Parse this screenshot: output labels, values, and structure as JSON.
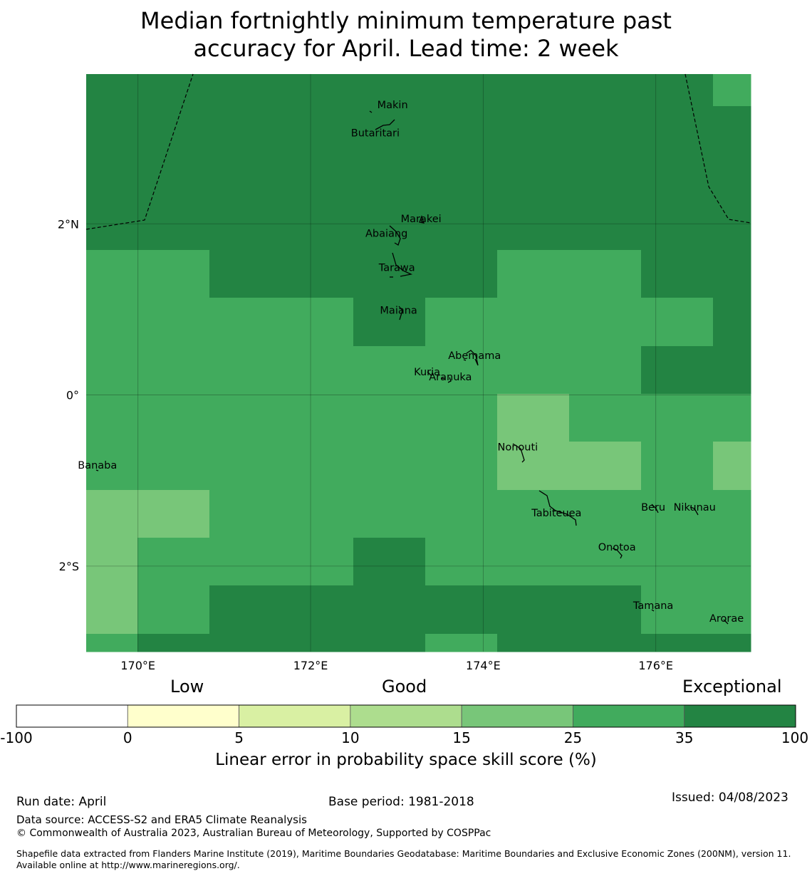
{
  "title_line1": "Median fortnightly minimum temperature past",
  "title_line2": "accuracy for April. Lead time: 2 week",
  "map": {
    "lon_range": [
      169.4,
      177.1
    ],
    "lat_range": [
      -3.0,
      3.75
    ],
    "lon_ticks": [
      {
        "value": 170,
        "label": "170°E"
      },
      {
        "value": 172,
        "label": "172°E"
      },
      {
        "value": 174,
        "label": "174°E"
      },
      {
        "value": 176,
        "label": "176°E"
      }
    ],
    "lat_ticks": [
      {
        "value": 2,
        "label": "2°N"
      },
      {
        "value": 0,
        "label": "0°"
      },
      {
        "value": -2,
        "label": "2°S"
      }
    ],
    "category_colors": [
      "#ffffff",
      "#ffffcc",
      "#d9f0a3",
      "#addd8e",
      "#78c679",
      "#41ab5d",
      "#238443"
    ],
    "places": [
      {
        "name": "Makin",
        "lon": 172.95,
        "lat": 3.35
      },
      {
        "name": "Butaritari",
        "lon": 172.75,
        "lat": 3.02
      },
      {
        "name": "Marakei",
        "lon": 173.28,
        "lat": 2.02
      },
      {
        "name": "Abaiang",
        "lon": 172.88,
        "lat": 1.85
      },
      {
        "name": "Tarawa",
        "lon": 173.0,
        "lat": 1.45
      },
      {
        "name": "Maiana",
        "lon": 173.02,
        "lat": 0.95
      },
      {
        "name": "Abemama",
        "lon": 173.9,
        "lat": 0.42
      },
      {
        "name": "Kuria",
        "lon": 173.35,
        "lat": 0.23
      },
      {
        "name": "Aranuka",
        "lon": 173.62,
        "lat": 0.17
      },
      {
        "name": "Nonouti",
        "lon": 174.4,
        "lat": -0.65
      },
      {
        "name": "Banaba",
        "lon": 169.53,
        "lat": -0.86
      },
      {
        "name": "Tabiteuea",
        "lon": 174.85,
        "lat": -1.42
      },
      {
        "name": "Beru",
        "lon": 175.97,
        "lat": -1.35
      },
      {
        "name": "Nikunau",
        "lon": 176.45,
        "lat": -1.35
      },
      {
        "name": "Onotoa",
        "lon": 175.55,
        "lat": -1.82
      },
      {
        "name": "Tamana",
        "lon": 175.97,
        "lat": -2.5
      },
      {
        "name": "Arorae",
        "lon": 176.82,
        "lat": -2.65
      }
    ]
  },
  "colorbar": {
    "headings": {
      "low": "Low",
      "good": "Good",
      "exceptional": "Exceptional"
    },
    "boundaries": [
      "-100",
      "0",
      "5",
      "10",
      "15",
      "25",
      "35",
      "100"
    ],
    "colors": [
      "#ffffff",
      "#ffffcc",
      "#d9f0a3",
      "#addd8e",
      "#78c679",
      "#41ab5d",
      "#238443"
    ],
    "label": "Linear error in probability space skill score (%)"
  },
  "footer": {
    "run_date": "Run date: April",
    "base_period": "Base period: 1981-2018",
    "issued": "Issued: 04/08/2023",
    "data_source": "Data source: ACCESS-S2 and ERA5 Climate Reanalysis",
    "copyright": "© Commonwealth of Australia 2023, Australian Bureau of Meteorology, Supported by COSPPac",
    "shapefile": "Shapefile data extracted from Flanders Marine Institute (2019), Maritime Boundaries Geodatabase: Maritime Boundaries and Exclusive Economic Zones (200NM), version 11. Available online at http://www.marineregions.org/."
  }
}
